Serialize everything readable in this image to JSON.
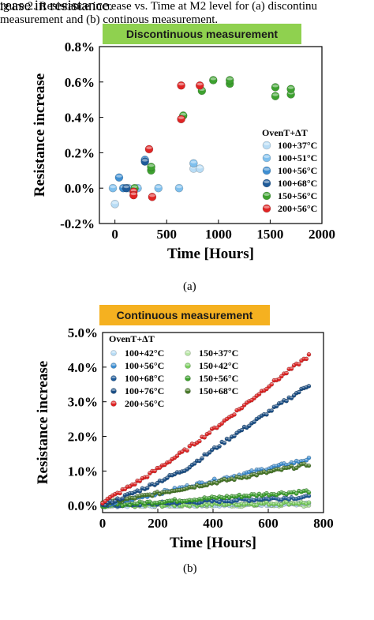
{
  "page": {
    "top_text": "rease in resistance.",
    "panel_a_caption": "(a)",
    "panel_b_caption": "(b)",
    "figure_caption_line1": "igure 2.    Resistance increase vs. Time at M2 level for (a) discontinu",
    "figure_caption_line2": "measurement and (b) continous measurement."
  },
  "chart_data": [
    {
      "type": "scatter",
      "title": "Discontinuous measurement",
      "xlabel": "Time [Hours]",
      "ylabel": "Resistance increase",
      "xlim": [
        -150,
        2000
      ],
      "ylim": [
        -0.2,
        0.8
      ],
      "xticks": [
        0,
        500,
        1000,
        1500,
        2000
      ],
      "yticks": [
        -0.2,
        0.0,
        0.2,
        0.4,
        0.6,
        0.8
      ],
      "xtick_labels": [
        "0",
        "500",
        "1000",
        "1500",
        "2000"
      ],
      "ytick_labels": [
        "-0.2%",
        "0.0%",
        "0.2%",
        "0.4%",
        "0.6%",
        "0.8%"
      ],
      "legend_title": "OvenT+ΔT",
      "legend_position": "right",
      "grid": false,
      "series": [
        {
          "name": "100+37°C",
          "color": "#b8dcf5",
          "points": [
            [
              0,
              -0.09
            ],
            [
              760,
              0.11
            ],
            [
              820,
              0.11
            ]
          ]
        },
        {
          "name": "100+51°C",
          "color": "#7fc0ee",
          "points": [
            [
              -20,
              0.0
            ],
            [
              130,
              0.0
            ],
            [
              220,
              0.0
            ],
            [
              420,
              0.0
            ],
            [
              620,
              0.0
            ],
            [
              760,
              0.14
            ]
          ]
        },
        {
          "name": "100+56°C",
          "color": "#3f8fd2",
          "points": [
            [
              40,
              0.06
            ],
            [
              80,
              0.0
            ],
            [
              290,
              0.16
            ]
          ]
        },
        {
          "name": "100+68°C",
          "color": "#1f5b99",
          "points": [
            [
              110,
              0.0
            ],
            [
              290,
              0.15
            ]
          ]
        },
        {
          "name": "150+56°C",
          "color": "#3da12f",
          "points": [
            [
              190,
              0.0
            ],
            [
              350,
              0.1
            ],
            [
              350,
              0.12
            ],
            [
              660,
              0.41
            ],
            [
              840,
              0.55
            ],
            [
              950,
              0.61
            ],
            [
              1110,
              0.59
            ],
            [
              1110,
              0.61
            ],
            [
              1550,
              0.52
            ],
            [
              1550,
              0.57
            ],
            [
              1700,
              0.53
            ],
            [
              1700,
              0.56
            ]
          ]
        },
        {
          "name": "200+56°C",
          "color": "#e02424",
          "points": [
            [
              180,
              -0.02
            ],
            [
              180,
              -0.04
            ],
            [
              330,
              0.22
            ],
            [
              360,
              -0.05
            ],
            [
              640,
              0.58
            ],
            [
              640,
              0.39
            ],
            [
              820,
              0.58
            ]
          ]
        }
      ]
    },
    {
      "type": "scatter",
      "title": "Continuous measurement",
      "xlabel": "Time [Hours]",
      "ylabel": "Resistance increase",
      "xlim": [
        0,
        800
      ],
      "ylim": [
        -0.2,
        5.0
      ],
      "xticks": [
        0,
        200,
        400,
        600,
        800
      ],
      "yticks": [
        0,
        1,
        2,
        3,
        4,
        5
      ],
      "xtick_labels": [
        "0",
        "200",
        "400",
        "600",
        "800"
      ],
      "ytick_labels": [
        "0.0%",
        "1.0%",
        "2.0%",
        "3.0%",
        "4.0%",
        "5.0%"
      ],
      "legend_title": "OvenT+ΔT",
      "legend_position": "top-left",
      "grid": false,
      "series": [
        {
          "name": "100+42°C",
          "color": "#b8dcf5",
          "x": [
            0,
            750
          ],
          "y": [
            0.0,
            0.05
          ]
        },
        {
          "name": "100+56°C",
          "color": "#3f8fd2",
          "x": [
            0,
            750
          ],
          "y": [
            0.0,
            1.35
          ]
        },
        {
          "name": "100+68°C",
          "color": "#1f5b99",
          "x": [
            0,
            750
          ],
          "y": [
            0.0,
            0.25
          ]
        },
        {
          "name": "100+76°C",
          "color": "#1b4f86",
          "x": [
            0,
            150,
            300,
            450,
            600,
            750
          ],
          "y": [
            0.0,
            0.5,
            1.05,
            1.9,
            2.7,
            3.5
          ]
        },
        {
          "name": "200+56°C",
          "color": "#e02424",
          "x": [
            0,
            150,
            300,
            450,
            600,
            750
          ],
          "y": [
            0.1,
            0.8,
            1.6,
            2.5,
            3.45,
            4.35
          ]
        },
        {
          "name": "150+37°C",
          "color": "#b9e6a6",
          "x": [
            0,
            750
          ],
          "y": [
            0.0,
            0.02
          ]
        },
        {
          "name": "150+42°C",
          "color": "#7ccf62",
          "x": [
            0,
            750
          ],
          "y": [
            0.0,
            0.08
          ]
        },
        {
          "name": "150+56°C",
          "color": "#3da12f",
          "x": [
            0,
            750
          ],
          "y": [
            0.0,
            0.42
          ]
        },
        {
          "name": "150+68°C",
          "color": "#4a7a2a",
          "x": [
            0,
            750
          ],
          "y": [
            0.05,
            1.2
          ]
        }
      ]
    }
  ]
}
